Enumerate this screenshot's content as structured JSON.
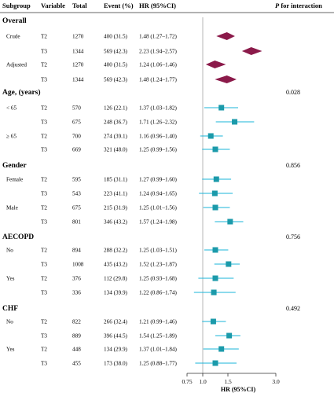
{
  "headers": {
    "subgroup": "Subgroup",
    "variable": "Variable",
    "total": "Total",
    "event": "Event (%)",
    "hr": "HR (95%CI)",
    "p_interaction_italic": "P",
    "p_interaction_rest": " for interaction"
  },
  "groups": [
    {
      "label": "Overall",
      "p": ""
    },
    {
      "label": "Age, (years)",
      "p": "0.028"
    },
    {
      "label": "Gender",
      "p": "0.856"
    },
    {
      "label": "AECOPD",
      "p": "0.756"
    },
    {
      "label": "CHF",
      "p": "0.492"
    }
  ],
  "colors": {
    "diamond": "#8B1A4A",
    "square": "#1B9AAA",
    "ci": "#19B4D8",
    "refline": "#999999",
    "axis": "#333333"
  },
  "chart_data": {
    "type": "forest",
    "xlabel": "HR (95%CI)",
    "xticks": [
      "0.75",
      "1.0",
      "1.5",
      "3.0"
    ],
    "xtick_values": [
      0.75,
      1.0,
      1.5,
      3.0
    ],
    "xlim": [
      0.75,
      3.0
    ],
    "reference_line": 1.0,
    "rows": [
      {
        "group": "Overall",
        "subgroup": "Crude",
        "variable": "T2",
        "total": "1270",
        "event": "400 (31.5)",
        "hr_text": "1.48 (1.27–1.72)",
        "hr": 1.48,
        "lo": 1.27,
        "hi": 1.72,
        "marker": "diamond"
      },
      {
        "group": "Overall",
        "subgroup": "",
        "variable": "T3",
        "total": "1344",
        "event": "569 (42.3)",
        "hr_text": "2.23 (1.94–2.57)",
        "hr": 2.23,
        "lo": 1.94,
        "hi": 2.57,
        "marker": "diamond"
      },
      {
        "group": "Overall",
        "subgroup": "Adjusted",
        "variable": "T2",
        "total": "1270",
        "event": "400 (31.5)",
        "hr_text": "1.24 (1.06–1.46)",
        "hr": 1.24,
        "lo": 1.06,
        "hi": 1.46,
        "marker": "diamond"
      },
      {
        "group": "Overall",
        "subgroup": "",
        "variable": "T3",
        "total": "1344",
        "event": "569 (42.3)",
        "hr_text": "1.48 (1.24–1.77)",
        "hr": 1.48,
        "lo": 1.24,
        "hi": 1.77,
        "marker": "diamond"
      },
      {
        "group": "Age, (years)",
        "subgroup": "< 65",
        "variable": "T2",
        "total": "570",
        "event": "126 (22.1)",
        "hr_text": "1.37 (1.03–1.82)",
        "hr": 1.37,
        "lo": 1.03,
        "hi": 1.82,
        "marker": "square"
      },
      {
        "group": "Age, (years)",
        "subgroup": "",
        "variable": "T3",
        "total": "675",
        "event": "248 (36.7)",
        "hr_text": "1.71 (1.26–2.32)",
        "hr": 1.71,
        "lo": 1.26,
        "hi": 2.32,
        "marker": "square"
      },
      {
        "group": "Age, (years)",
        "subgroup": "≥ 65",
        "variable": "T2",
        "total": "700",
        "event": "274 (39.1)",
        "hr_text": "1.16 (0.96–1.40)",
        "hr": 1.16,
        "lo": 0.96,
        "hi": 1.4,
        "marker": "square"
      },
      {
        "group": "Age, (years)",
        "subgroup": "",
        "variable": "T3",
        "total": "669",
        "event": "321 (48.0)",
        "hr_text": "1.25 (0.99–1.56)",
        "hr": 1.25,
        "lo": 0.99,
        "hi": 1.56,
        "marker": "square"
      },
      {
        "group": "Gender",
        "subgroup": "Female",
        "variable": "T2",
        "total": "595",
        "event": "185 (31.1)",
        "hr_text": "1.27 (0.99–1.60)",
        "hr": 1.27,
        "lo": 0.99,
        "hi": 1.6,
        "marker": "square"
      },
      {
        "group": "Gender",
        "subgroup": "",
        "variable": "T3",
        "total": "543",
        "event": "223 (41.1)",
        "hr_text": "1.24 (0.94–1.65)",
        "hr": 1.24,
        "lo": 0.94,
        "hi": 1.65,
        "marker": "square"
      },
      {
        "group": "Gender",
        "subgroup": "Male",
        "variable": "T2",
        "total": "675",
        "event": "215 (31.9)",
        "hr_text": "1.25 (1.01–1.56)",
        "hr": 1.25,
        "lo": 1.01,
        "hi": 1.56,
        "marker": "square"
      },
      {
        "group": "Gender",
        "subgroup": "",
        "variable": "T3",
        "total": "801",
        "event": "346 (43.2)",
        "hr_text": "1.57 (1.24–1.98)",
        "hr": 1.57,
        "lo": 1.24,
        "hi": 1.98,
        "marker": "square"
      },
      {
        "group": "AECOPD",
        "subgroup": "No",
        "variable": "T2",
        "total": "894",
        "event": "288 (32.2)",
        "hr_text": "1.25 (1.03–1.51)",
        "hr": 1.25,
        "lo": 1.03,
        "hi": 1.51,
        "marker": "square"
      },
      {
        "group": "AECOPD",
        "subgroup": "",
        "variable": "T3",
        "total": "1008",
        "event": "435 (43.2)",
        "hr_text": "1.52 (1.23–1.87)",
        "hr": 1.52,
        "lo": 1.23,
        "hi": 1.87,
        "marker": "square"
      },
      {
        "group": "AECOPD",
        "subgroup": "Yes",
        "variable": "T2",
        "total": "376",
        "event": "112 (29.8)",
        "hr_text": "1.25 (0.93–1.68)",
        "hr": 1.25,
        "lo": 0.93,
        "hi": 1.68,
        "marker": "square"
      },
      {
        "group": "AECOPD",
        "subgroup": "",
        "variable": "T3",
        "total": "336",
        "event": "134 (39.9)",
        "hr_text": "1.22 (0.86–1.74)",
        "hr": 1.22,
        "lo": 0.86,
        "hi": 1.74,
        "marker": "square"
      },
      {
        "group": "CHF",
        "subgroup": "No",
        "variable": "T2",
        "total": "822",
        "event": "266 (32.4)",
        "hr_text": "1.21 (0.99–1.46)",
        "hr": 1.21,
        "lo": 0.99,
        "hi": 1.46,
        "marker": "square"
      },
      {
        "group": "CHF",
        "subgroup": "",
        "variable": "T3",
        "total": "889",
        "event": "396 (44.5)",
        "hr_text": "1.54 (1.25–1.89)",
        "hr": 1.54,
        "lo": 1.25,
        "hi": 1.89,
        "marker": "square"
      },
      {
        "group": "CHF",
        "subgroup": "Yes",
        "variable": "T2",
        "total": "448",
        "event": "134 (29.9)",
        "hr_text": "1.37 (1.01–1.84)",
        "hr": 1.37,
        "lo": 1.01,
        "hi": 1.84,
        "marker": "square"
      },
      {
        "group": "CHF",
        "subgroup": "",
        "variable": "T3",
        "total": "455",
        "event": "173 (38.0)",
        "hr_text": "1.25 (0.88–1.77)",
        "hr": 1.25,
        "lo": 0.88,
        "hi": 1.77,
        "marker": "square"
      }
    ]
  }
}
